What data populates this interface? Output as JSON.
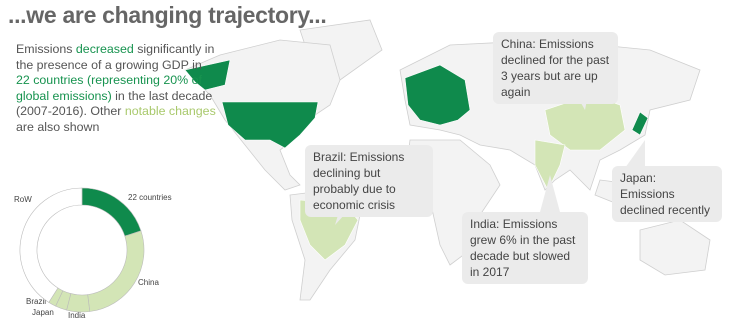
{
  "header": {
    "title": "...we are changing trajectory..."
  },
  "intro": {
    "parts": [
      "Emissions ",
      "decreased",
      " significantly in the presence of a growing GDP in ",
      "22 countries (representing 20% of global emissions)",
      " in the last decade (2007-2016). Other ",
      "notable changes",
      " are also shown"
    ]
  },
  "callouts": [
    {
      "label": "Brazil: Emissions declining but probably due to economic crisis"
    },
    {
      "label": "China: Emissions declined for the past 3 years but are up again"
    },
    {
      "label": "India: Emissions grew 6% in the past decade but slowed in 2017"
    },
    {
      "label": "Japan: Emissions declined recently"
    }
  ],
  "chart_data": {
    "type": "donut",
    "categories": [
      "22 countries",
      "China",
      "India",
      "Japan",
      "Brazil",
      "RoW"
    ],
    "values": [
      20,
      28,
      6,
      3,
      2,
      41
    ],
    "colors": [
      "#0f8a4c",
      "#d3e5b6",
      "#d3e5b6",
      "#d3e5b6",
      "#d3e5b6",
      "#ffffff"
    ]
  }
}
